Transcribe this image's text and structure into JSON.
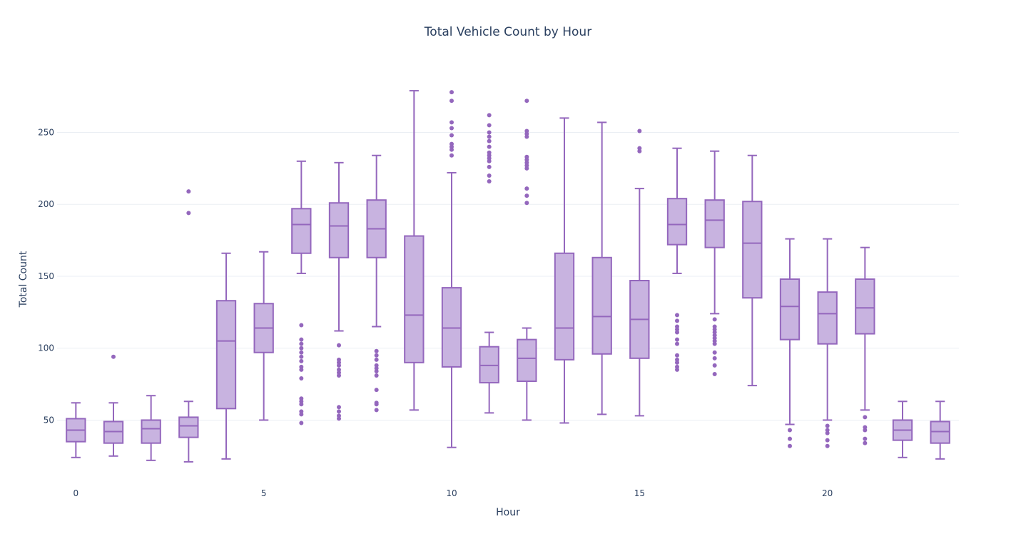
{
  "chart_data": {
    "type": "box",
    "title": "Total Vehicle Count by Hour",
    "xlabel": "Hour",
    "ylabel": "Total Count",
    "x_ticks": [
      0,
      5,
      10,
      15,
      20
    ],
    "y_ticks": [
      50,
      100,
      150,
      200,
      250
    ],
    "xlim": [
      -0.5,
      23.5
    ],
    "ylim": [
      12,
      285
    ],
    "grid": "horizontal",
    "colors": {
      "fill": "#c8b3e0",
      "line": "#9467bd",
      "grid": "#ebeff4",
      "text": "#2a3f5f"
    },
    "boxes": [
      {
        "hour": 0,
        "min": 24,
        "q1": 35,
        "median": 43,
        "q3": 51,
        "max": 62,
        "outliers": []
      },
      {
        "hour": 1,
        "min": 25,
        "q1": 34,
        "median": 42,
        "q3": 49,
        "max": 62,
        "outliers": [
          94
        ]
      },
      {
        "hour": 2,
        "min": 22,
        "q1": 34,
        "median": 44,
        "q3": 50,
        "max": 67,
        "outliers": []
      },
      {
        "hour": 3,
        "min": 21,
        "q1": 38,
        "median": 46,
        "q3": 52,
        "max": 63,
        "outliers": [
          194,
          209
        ]
      },
      {
        "hour": 4,
        "min": 23,
        "q1": 58,
        "median": 105,
        "q3": 133,
        "max": 166,
        "outliers": []
      },
      {
        "hour": 5,
        "min": 50,
        "q1": 97,
        "median": 114,
        "q3": 131,
        "max": 167,
        "outliers": []
      },
      {
        "hour": 6,
        "min": 152,
        "q1": 166,
        "median": 186,
        "q3": 197,
        "max": 230,
        "outliers": [
          48,
          54,
          56,
          61,
          63,
          65,
          79,
          85,
          87,
          91,
          94,
          97,
          100,
          103,
          106,
          116
        ]
      },
      {
        "hour": 7,
        "min": 112,
        "q1": 163,
        "median": 185,
        "q3": 201,
        "max": 229,
        "outliers": [
          51,
          53,
          56,
          59,
          81,
          83,
          85,
          88,
          90,
          92,
          102
        ]
      },
      {
        "hour": 8,
        "min": 115,
        "q1": 163,
        "median": 183,
        "q3": 203,
        "max": 234,
        "outliers": [
          57,
          61,
          62,
          71,
          81,
          84,
          86,
          88,
          92,
          95,
          98
        ]
      },
      {
        "hour": 9,
        "min": 57,
        "q1": 90,
        "median": 123,
        "q3": 178,
        "max": 279,
        "outliers": []
      },
      {
        "hour": 10,
        "min": 31,
        "q1": 87,
        "median": 114,
        "q3": 142,
        "max": 222,
        "outliers": [
          234,
          238,
          240,
          242,
          248,
          253,
          257,
          272,
          278
        ]
      },
      {
        "hour": 11,
        "min": 55,
        "q1": 76,
        "median": 88,
        "q3": 101,
        "max": 111,
        "outliers": [
          216,
          220,
          226,
          230,
          232,
          234,
          236,
          240,
          244,
          247,
          250,
          255,
          262
        ]
      },
      {
        "hour": 12,
        "min": 50,
        "q1": 77,
        "median": 93,
        "q3": 106,
        "max": 114,
        "outliers": [
          201,
          206,
          211,
          225,
          227,
          229,
          231,
          233,
          247,
          249,
          251,
          272
        ]
      },
      {
        "hour": 13,
        "min": 48,
        "q1": 92,
        "median": 114,
        "q3": 166,
        "max": 260,
        "outliers": []
      },
      {
        "hour": 14,
        "min": 54,
        "q1": 96,
        "median": 122,
        "q3": 163,
        "max": 257,
        "outliers": []
      },
      {
        "hour": 15,
        "min": 53,
        "q1": 93,
        "median": 120,
        "q3": 147,
        "max": 211,
        "outliers": [
          237,
          239,
          251
        ]
      },
      {
        "hour": 16,
        "min": 152,
        "q1": 172,
        "median": 186,
        "q3": 204,
        "max": 239,
        "outliers": [
          85,
          87,
          90,
          92,
          95,
          103,
          106,
          111,
          113,
          115,
          119,
          123
        ]
      },
      {
        "hour": 17,
        "min": 124,
        "q1": 170,
        "median": 189,
        "q3": 203,
        "max": 237,
        "outliers": [
          82,
          88,
          93,
          97,
          103,
          105,
          107,
          109,
          111,
          113,
          115,
          120
        ]
      },
      {
        "hour": 18,
        "min": 74,
        "q1": 135,
        "median": 173,
        "q3": 202,
        "max": 234,
        "outliers": []
      },
      {
        "hour": 19,
        "min": 47,
        "q1": 106,
        "median": 129,
        "q3": 148,
        "max": 176,
        "outliers": [
          32,
          37,
          43
        ]
      },
      {
        "hour": 20,
        "min": 50,
        "q1": 103,
        "median": 124,
        "q3": 139,
        "max": 176,
        "outliers": [
          32,
          36,
          41,
          43,
          46
        ]
      },
      {
        "hour": 21,
        "min": 57,
        "q1": 110,
        "median": 128,
        "q3": 148,
        "max": 170,
        "outliers": [
          34,
          37,
          43,
          45,
          52
        ]
      },
      {
        "hour": 22,
        "min": 24,
        "q1": 36,
        "median": 43,
        "q3": 50,
        "max": 63,
        "outliers": []
      },
      {
        "hour": 23,
        "min": 23,
        "q1": 34,
        "median": 42,
        "q3": 49,
        "max": 63,
        "outliers": []
      }
    ]
  }
}
